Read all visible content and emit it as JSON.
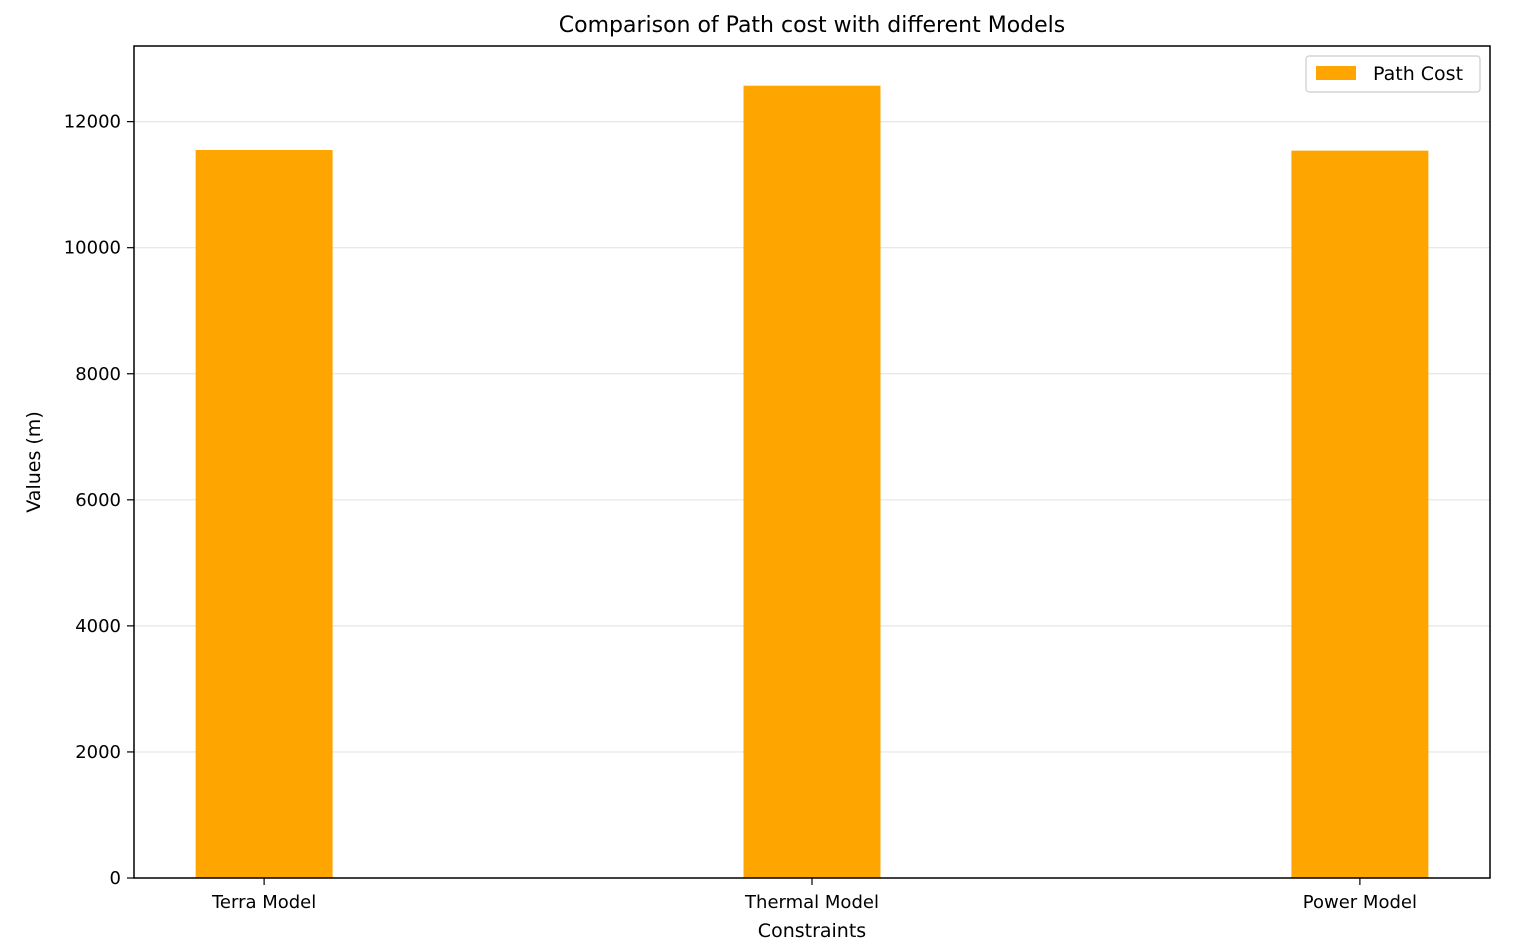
{
  "chart_data": {
    "type": "bar",
    "title": "Comparison of Path cost with different Models",
    "xlabel": "Constraints",
    "ylabel": "Values (m)",
    "categories": [
      "Terra Model",
      "Thermal Model",
      "Power Model"
    ],
    "series": [
      {
        "name": "Path Cost",
        "values": [
          11550,
          12570,
          11540
        ],
        "color": "#ffa500"
      }
    ],
    "ylim": [
      0,
      13200
    ],
    "yticks": [
      0,
      2000,
      4000,
      6000,
      8000,
      10000,
      12000
    ],
    "grid": "y",
    "legend_position": "top-right"
  }
}
